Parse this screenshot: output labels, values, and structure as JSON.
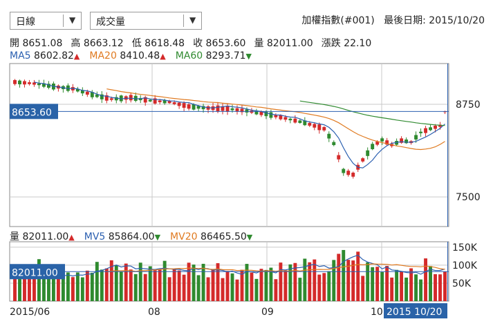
{
  "toolbar": {
    "period_select": {
      "value": "日線"
    },
    "indicator_select": {
      "value": "成交量"
    },
    "dropdown_glyph": "▼"
  },
  "header": {
    "index_name": "加權指數(#001)",
    "last_date_label": "最後日期:",
    "last_date": "2015/10/20"
  },
  "ohlc": {
    "open_label": "開",
    "open": "8651.08",
    "high_label": "高",
    "high": "8663.12",
    "low_label": "低",
    "low": "8618.48",
    "close_label": "收",
    "close": "8653.60",
    "volume_label": "量",
    "volume": "82011.00",
    "change_label": "漲跌",
    "change": "22.10"
  },
  "ma_legend": [
    {
      "label": "MA5",
      "value": "8602.82",
      "dir": "up",
      "color": "#2a5fb0"
    },
    {
      "label": "MA20",
      "value": "8410.48",
      "dir": "up",
      "color": "#e07a20"
    },
    {
      "label": "MA60",
      "value": "8293.71",
      "dir": "down",
      "color": "#2f8a2f"
    }
  ],
  "vol_legend": [
    {
      "label": "量",
      "value": "82011.00",
      "dir": "up",
      "color": "#222222"
    },
    {
      "label": "MV5",
      "value": "85864.00",
      "dir": "down",
      "color": "#2a5fb0"
    },
    {
      "label": "MV20",
      "value": "86465.50",
      "dir": "down",
      "color": "#e07a20"
    }
  ],
  "colors": {
    "up": "#d42a2a",
    "down": "#2f8a2f",
    "ma5": "#2a5fb0",
    "ma20": "#e07a20",
    "ma60": "#2f8a2f",
    "cursor": "#2a5fb0",
    "grid": "#c9c9c9"
  },
  "chart_data": {
    "type": "candlestick",
    "price_axis": {
      "ticks": [
        8750,
        7500
      ],
      "range": [
        7100,
        9300
      ]
    },
    "volume_axis": {
      "ticks": [
        "150K",
        "100K",
        "50K"
      ],
      "range": [
        0,
        165000
      ]
    },
    "x_labels": [
      "2015/06",
      "08",
      "09",
      "10"
    ],
    "cursor_price_label": "8653.60",
    "cursor_volume_label": "82011.00",
    "cursor_date_label": "2015 10/20"
  }
}
